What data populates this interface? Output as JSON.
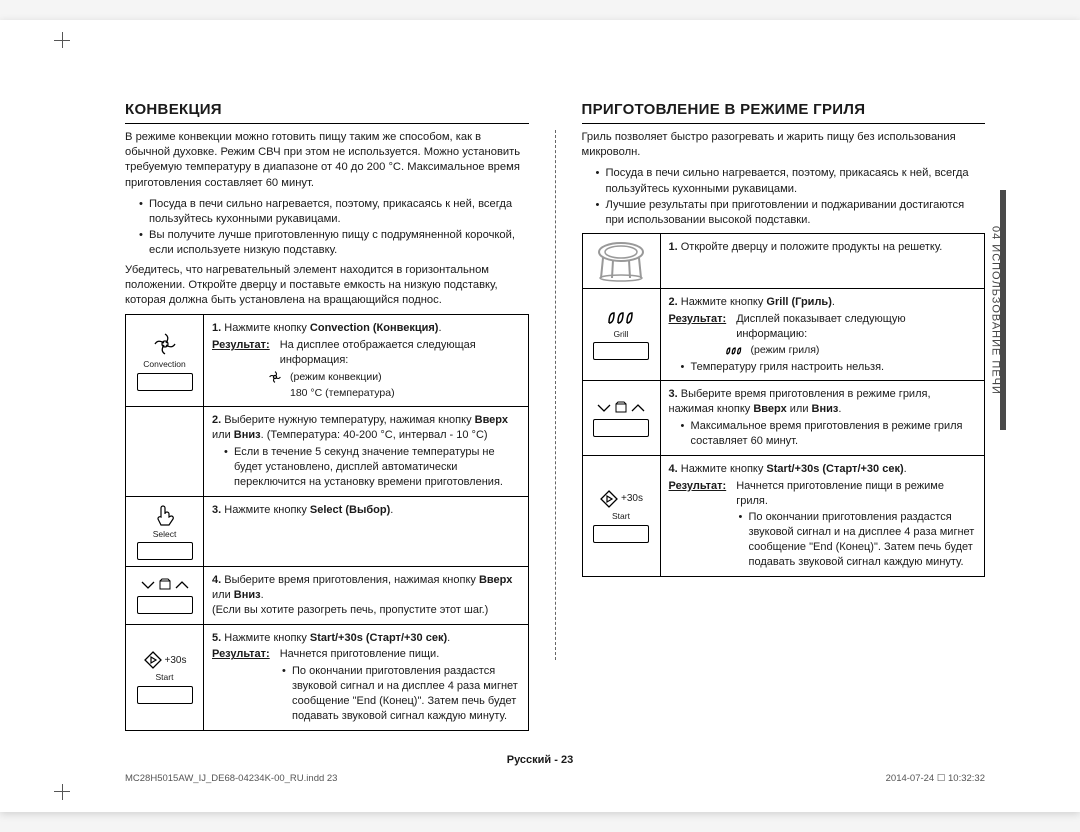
{
  "sideTab": "04  ИСПОЛЬЗОВАНИЕ ПЕЧИ",
  "footer": {
    "lang": "Русский",
    "page": "23"
  },
  "footline": {
    "left": "MC28H5015AW_IJ_DE68-04234K-00_RU.indd   23",
    "right": "2014-07-24   ☐ 10:32:32"
  },
  "left": {
    "title": "КОНВЕКЦИЯ",
    "intro": "В режиме конвекции можно готовить пищу таким же способом, как в обычной духовке. Режим СВЧ при этом не используется. Можно установить требуемую температуру в диапазоне от 40 до 200 °C. Максимальное время приготовления составляет 60 минут.",
    "tips": [
      "Посуда в печи сильно нагревается, поэтому, прикасаясь к ней, всегда пользуйтесь кухонными рукавицами.",
      "Вы получите лучше приготовленную пищу с подрумяненной корочкой, если используете низкую подставку."
    ],
    "after": "Убедитесь, что нагревательный элемент находится в горизонтальном положении. Откройте дверцу и поставьте емкость на низкую подставку, которая должна быть установлена на вращающийся поднос.",
    "iconLabels": {
      "convection": "Convection",
      "select": "Select",
      "start": "Start",
      "plus30": "+30s"
    },
    "steps": [
      {
        "icon": "convection",
        "num": "1.",
        "line1_pre": "Нажмите кнопку ",
        "line1_b": "Convection (Конвекция)",
        "line1_post": ".",
        "result": "На дисплее отображается следующая информация:",
        "mini": [
          {
            "icon": "fan",
            "text": "(режим конвекции)"
          },
          {
            "icon": "",
            "text": "180 °C   (температура)"
          }
        ]
      },
      {
        "icon": "none",
        "num": "2.",
        "body": "Выберите нужную температуру, нажимая кнопку <b>Вверх</b> или <b>Вниз</b>. (Температура: 40-200 °C, интервал - 10 °C)",
        "sub": [
          "Если в течение 5 секунд значение температуры не будет установлено, дисплей автоматически переключится на установку времени приготовления."
        ]
      },
      {
        "icon": "select",
        "num": "3.",
        "line1_pre": "Нажмите кнопку ",
        "line1_b": "Select (Выбор)",
        "line1_post": "."
      },
      {
        "icon": "updown",
        "num": "4.",
        "body": "Выберите время приготовления, нажимая кнопку <b>Вверх</b> или <b>Вниз</b>.<br>(Если вы хотите разогреть печь, пропустите этот шаг.)"
      },
      {
        "icon": "start",
        "num": "5.",
        "line1_pre": "Нажмите кнопку ",
        "line1_b": "Start/+30s (Старт/+30 сек)",
        "line1_post": ".",
        "result": "Начнется приготовление пищи.",
        "sub": [
          "По окончании приготовления раздастся звуковой сигнал и на дисплее 4 раза мигнет сообщение \"End (Конец)\". Затем печь будет подавать звуковой сигнал каждую минуту."
        ]
      }
    ]
  },
  "right": {
    "title": "ПРИГОТОВЛЕНИЕ В РЕЖИМЕ ГРИЛЯ",
    "intro": "Гриль позволяет быстро разогревать и жарить пищу без использования микроволн.",
    "tips": [
      "Посуда в печи сильно нагревается, поэтому, прикасаясь к ней, всегда пользуйтесь кухонными рукавицами.",
      "Лучшие результаты при приготовлении и поджаривании достигаются при использовании высокой подставки."
    ],
    "iconLabels": {
      "grill": "Grill",
      "start": "Start",
      "plus30": "+30s"
    },
    "steps": [
      {
        "icon": "rack",
        "num": "1.",
        "body": "Откройте дверцу и положите продукты на решетку."
      },
      {
        "icon": "grill",
        "num": "2.",
        "line1_pre": "Нажмите кнопку ",
        "line1_b": "Grill (Гриль)",
        "line1_post": ".",
        "result": "Дисплей показывает следующую информацию:",
        "mini": [
          {
            "icon": "grill",
            "text": "(режим гриля)"
          }
        ],
        "sub": [
          "Температуру гриля настроить нельзя."
        ]
      },
      {
        "icon": "updown",
        "num": "3.",
        "body": "Выберите время приготовления в режиме гриля, нажимая кнопку <b>Вверх</b> или <b>Вниз</b>.",
        "sub": [
          "Максимальное время приготовления в режиме гриля составляет 60 минут."
        ]
      },
      {
        "icon": "start",
        "num": "4.",
        "line1_pre": "Нажмите кнопку ",
        "line1_b": "Start/+30s (Старт/+30 сек)",
        "line1_post": ".",
        "result": "Начнется приготовление пищи в режиме гриля.",
        "sub": [
          "По окончании приготовления раздастся звуковой сигнал и на дисплее 4 раза мигнет сообщение \"End (Конец)\". Затем печь будет подавать звуковой сигнал каждую минуту."
        ]
      }
    ]
  }
}
